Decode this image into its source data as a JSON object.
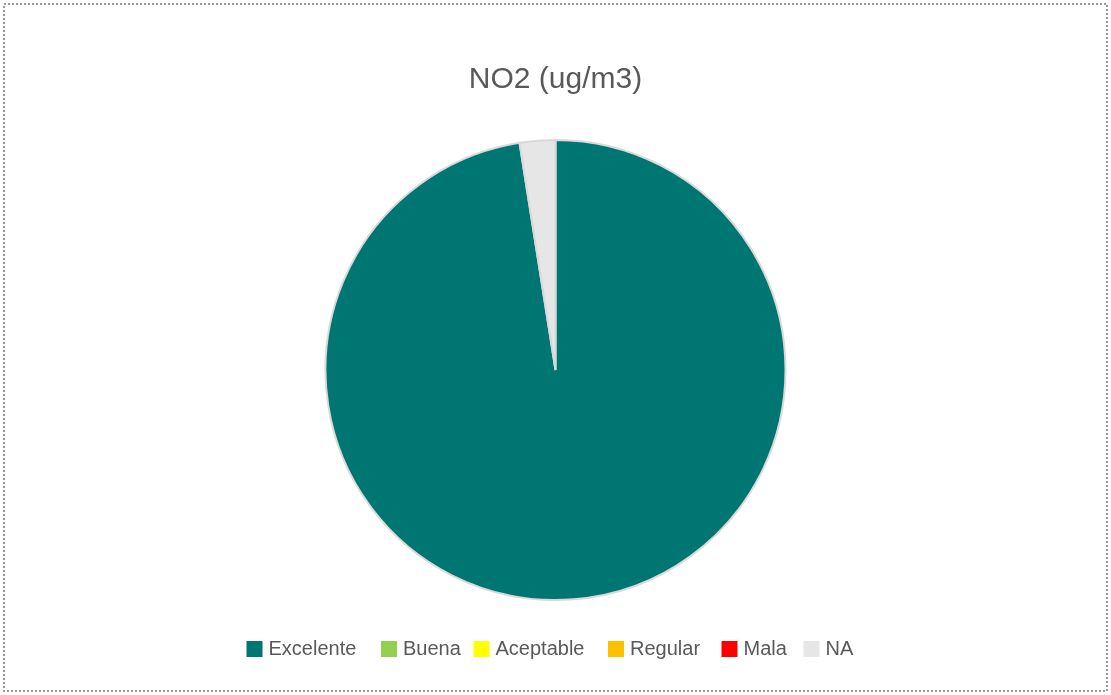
{
  "chart_data": {
    "type": "pie",
    "title": "NO2 (ug/m3)",
    "categories": [
      "Excelente",
      "Buena",
      "Aceptable",
      "Regular",
      "Mala",
      "NA"
    ],
    "values": [
      97.5,
      0,
      0,
      0,
      0,
      2.5
    ],
    "colors": [
      "#007672",
      "#92d050",
      "#ffff00",
      "#ffc000",
      "#ff0000",
      "#e7e6e6"
    ],
    "legend": "bottom"
  }
}
